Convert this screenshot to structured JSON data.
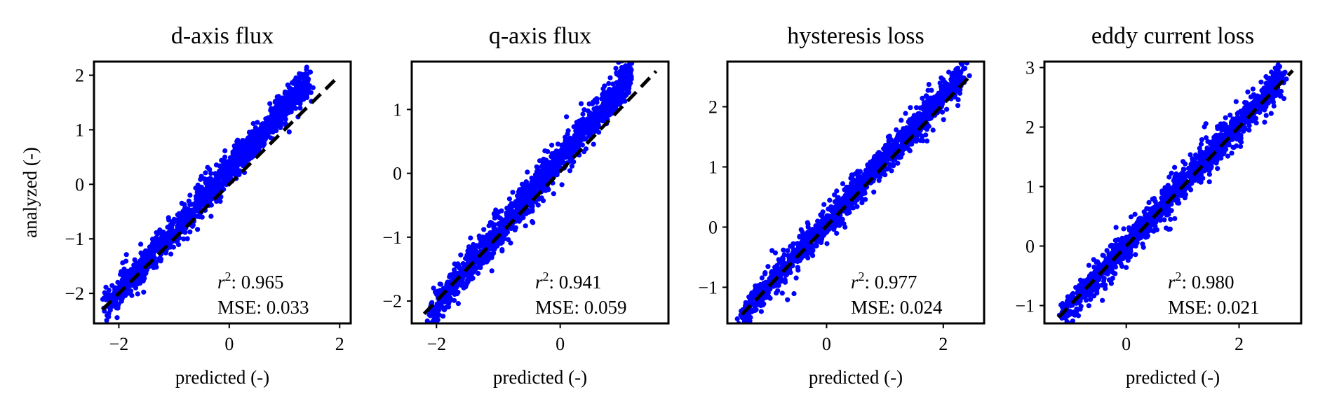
{
  "figure": {
    "ylabel": "analyzed (-)",
    "xlabel": "predicted (-)",
    "point_color": "#0000ff",
    "line_color": "#000000"
  },
  "chart_data": [
    {
      "type": "scatter",
      "title": "d-axis flux",
      "xlabel": "predicted (-)",
      "ylabel": "analyzed (-)",
      "xlim": [
        -2.45,
        2.2
      ],
      "ylim": [
        -2.55,
        2.25
      ],
      "xticks": [
        -2,
        0,
        2
      ],
      "xtick_labels": [
        "−2",
        "0",
        "2"
      ],
      "yticks": [
        -2,
        -1,
        0,
        1,
        2
      ],
      "ytick_labels": [
        "−2",
        "−1",
        "0",
        "1",
        "2"
      ],
      "reference_line": {
        "style": "dashed",
        "from": [
          -2.3,
          -2.3
        ],
        "to": [
          1.95,
          1.95
        ]
      },
      "trend": [
        [
          -2.25,
          -2.25
        ],
        [
          1.45,
          1.9
        ]
      ],
      "spread": 0.14,
      "n_points": 1500,
      "r2": "0.965",
      "mse": "0.033",
      "r2_label": "r",
      "r2_sup": "2",
      "r2_value": ": 0.965",
      "mse_text": "MSE: 0.033"
    },
    {
      "type": "scatter",
      "title": "q-axis flux",
      "xlabel": "predicted (-)",
      "ylabel": "",
      "xlim": [
        -2.4,
        1.75
      ],
      "ylim": [
        -2.35,
        1.75
      ],
      "xticks": [
        -2,
        0
      ],
      "xtick_labels": [
        "−2",
        "0"
      ],
      "yticks": [
        -2,
        -1,
        0,
        1
      ],
      "ytick_labels": [
        "−2",
        "−1",
        "0",
        "1"
      ],
      "reference_line": {
        "style": "dashed",
        "from": [
          -2.2,
          -2.2
        ],
        "to": [
          1.55,
          1.6
        ]
      },
      "trend": [
        [
          -2.1,
          -2.2
        ],
        [
          1.15,
          1.55
        ]
      ],
      "spread": 0.13,
      "n_points": 1500,
      "r2": "0.941",
      "mse": "0.059",
      "r2_label": "r",
      "r2_sup": "2",
      "r2_value": ": 0.941",
      "mse_text": "MSE: 0.059"
    },
    {
      "type": "scatter",
      "title": "hysteresis loss",
      "xlabel": "predicted (-)",
      "ylabel": "",
      "xlim": [
        -1.7,
        2.7
      ],
      "ylim": [
        -1.6,
        2.75
      ],
      "xticks": [
        0,
        2
      ],
      "xtick_labels": [
        "0",
        "2"
      ],
      "yticks": [
        -1,
        0,
        1,
        2
      ],
      "ytick_labels": [
        "−1",
        "0",
        "1",
        "2"
      ],
      "reference_line": {
        "style": "dashed",
        "from": [
          -1.45,
          -1.45
        ],
        "to": [
          2.5,
          2.55
        ]
      },
      "trend": [
        [
          -1.45,
          -1.45
        ],
        [
          2.35,
          2.55
        ]
      ],
      "spread": 0.12,
      "n_points": 1500,
      "r2": "0.977",
      "mse": "0.024",
      "r2_label": "r",
      "r2_sup": "2",
      "r2_value": ": 0.977",
      "mse_text": "MSE: 0.024"
    },
    {
      "type": "scatter",
      "title": "eddy current loss",
      "xlabel": "predicted (-)",
      "ylabel": "",
      "xlim": [
        -1.45,
        3.1
      ],
      "ylim": [
        -1.3,
        3.1
      ],
      "xticks": [
        0,
        2
      ],
      "xtick_labels": [
        "0",
        "2"
      ],
      "yticks": [
        -1,
        0,
        1,
        2,
        3
      ],
      "ytick_labels": [
        "−1",
        "0",
        "1",
        "2",
        "3"
      ],
      "reference_line": {
        "style": "dashed",
        "from": [
          -1.2,
          -1.2
        ],
        "to": [
          2.95,
          2.95
        ]
      },
      "trend": [
        [
          -1.15,
          -1.15
        ],
        [
          2.8,
          2.85
        ]
      ],
      "spread": 0.13,
      "n_points": 1500,
      "r2": "0.980",
      "mse": "0.021",
      "r2_label": "r",
      "r2_sup": "2",
      "r2_value": ": 0.980",
      "mse_text": "MSE: 0.021"
    }
  ]
}
